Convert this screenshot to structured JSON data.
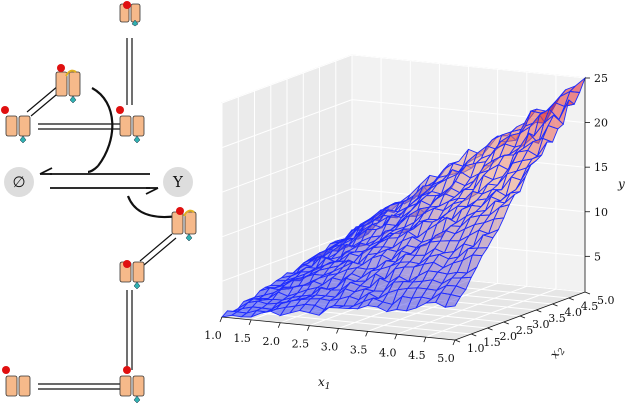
{
  "diagram": {
    "empty_set_label": "∅",
    "species_label": "Y"
  },
  "chart_data": {
    "type": "surface",
    "title": "",
    "xlabel": "x1",
    "ylabel": "x2",
    "zlabel": "y",
    "xlim": [
      1.0,
      5.0
    ],
    "ylim": [
      1.0,
      5.0
    ],
    "zlim": [
      1,
      25
    ],
    "x_ticks": [
      "1.0",
      "1.5",
      "2.0",
      "2.5",
      "3.0",
      "3.5",
      "4.0",
      "4.5",
      "5.0"
    ],
    "y_ticks": [
      "1.0",
      "1.5",
      "2.0",
      "2.5",
      "3.0",
      "3.5",
      "4.0",
      "4.5",
      "5.0"
    ],
    "z_ticks": [
      "5",
      "10",
      "15",
      "20",
      "25"
    ],
    "surface": "approximately y = x1 * x2 with noise",
    "grid": true,
    "colormap": [
      "#2233ff",
      "#f0a080",
      "#e01020"
    ]
  }
}
